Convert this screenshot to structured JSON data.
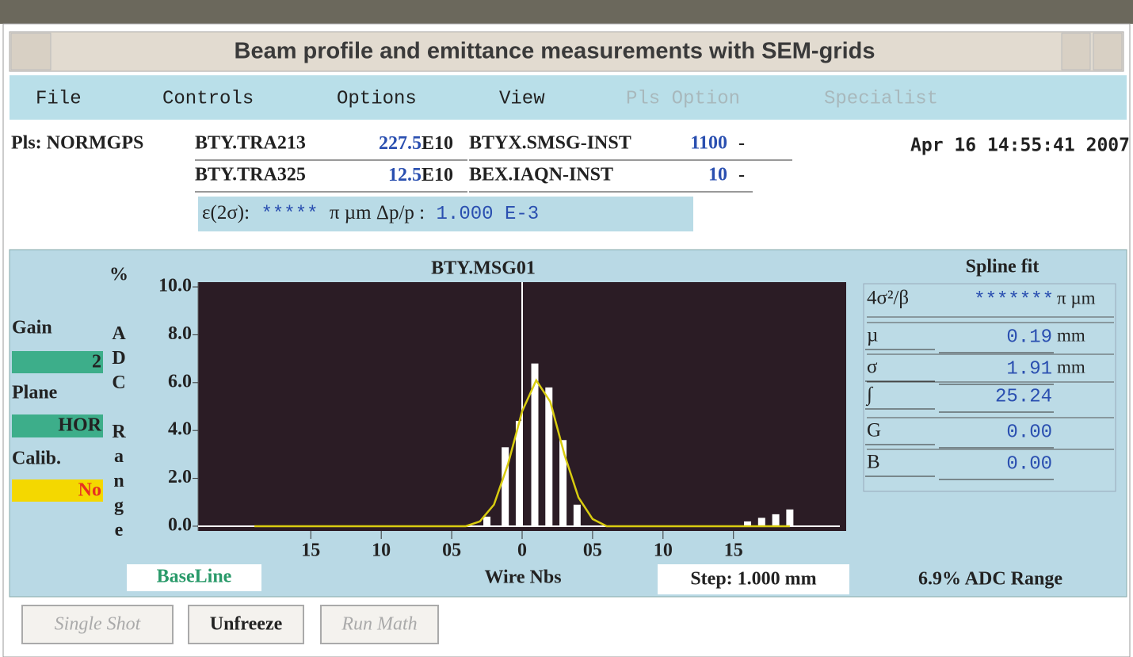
{
  "window": {
    "title": "Beam profile and emittance measurements with SEM-grids",
    "menu": [
      {
        "label": "File",
        "enabled": true
      },
      {
        "label": "Controls",
        "enabled": true
      },
      {
        "label": "Options",
        "enabled": true
      },
      {
        "label": "View",
        "enabled": true
      },
      {
        "label": "Pls Option",
        "enabled": false
      },
      {
        "label": "Specialist",
        "enabled": false
      }
    ]
  },
  "header": {
    "pulse": "Pls: NORMGPS",
    "rows": [
      {
        "name": "BTY.TRA213",
        "value": "227.5",
        "exp": "E10",
        "device": "BTYX.SMSG-INST",
        "reading": "1100",
        "unit": "-"
      },
      {
        "name": "BTY.TRA325",
        "value": "12.5",
        "exp": "E10",
        "device": "BEX.IAQN-INST",
        "reading": "10",
        "unit": "-"
      }
    ],
    "timestamp": "Apr 16 14:55:41 2007",
    "emittance": {
      "label": "ε(2σ):",
      "value": "*****",
      "unit": "π µm Δp/p :",
      "dpp": "1.000",
      "dpp_exp": "E-3"
    }
  },
  "controls": {
    "gain_label": "Gain",
    "gain": "2",
    "plane_label": "Plane",
    "plane": "HOR",
    "calib_label": "Calib.",
    "calib": "No"
  },
  "chart_data": {
    "type": "bar",
    "title": "BTY.MSG01",
    "ylabel": "ADC Range",
    "yunit": "%",
    "xlabel": "Wire Nbs",
    "x": [
      -2.5,
      -1.2,
      -0.2,
      0.9,
      1.9,
      2.9,
      3.9,
      16,
      17,
      18,
      19
    ],
    "values": [
      0.4,
      3.3,
      4.4,
      6.8,
      5.8,
      3.6,
      0.9,
      0.2,
      0.35,
      0.5,
      0.7
    ],
    "color": "#ffffff",
    "fit": {
      "x": [
        -19,
        -4,
        -3,
        -2,
        -1,
        0,
        1,
        2,
        3,
        4,
        5,
        6,
        19
      ],
      "values": [
        0,
        0,
        0.2,
        0.9,
        2.6,
        4.8,
        6.1,
        5.2,
        3.0,
        1.2,
        0.3,
        0,
        0
      ],
      "color": "#d8cc10"
    },
    "xlim": [
      -23,
      23
    ],
    "ylim": [
      -0.2,
      10.2
    ],
    "xticks": [
      {
        "value": -15,
        "label": "15"
      },
      {
        "value": -10,
        "label": "10"
      },
      {
        "value": -5,
        "label": "05"
      },
      0,
      {
        "value": 5,
        "label": "05"
      },
      10,
      15
    ],
    "yticks": [
      {
        "value": 0,
        "label": "0.0"
      },
      {
        "value": 2,
        "label": "2.0"
      },
      {
        "value": 4,
        "label": "4.0"
      },
      {
        "value": 6,
        "label": "6.0"
      },
      {
        "value": 8,
        "label": "8.0"
      },
      {
        "value": 10,
        "label": "10.0"
      }
    ]
  },
  "fit": {
    "title": "Spline fit",
    "rows": [
      {
        "label": "4σ²/β",
        "value": "*******",
        "unit": "π µm"
      },
      {
        "label": "µ",
        "value": "0.19",
        "unit": "mm"
      },
      {
        "label": "σ",
        "value": "1.91",
        "unit": "mm"
      },
      {
        "label": "∫",
        "value": "25.24"
      },
      {
        "label": "G",
        "value": "0.00"
      },
      {
        "label": "B",
        "value": "0.00"
      }
    ]
  },
  "status": {
    "baseline": "BaseLine",
    "step": "Step: 1.000 mm",
    "range": "6.9% ADC Range"
  },
  "buttons": [
    {
      "label": "Single Shot",
      "enabled": false
    },
    {
      "label": "Unfreeze",
      "enabled": true
    },
    {
      "label": "Run Math",
      "enabled": false
    }
  ]
}
